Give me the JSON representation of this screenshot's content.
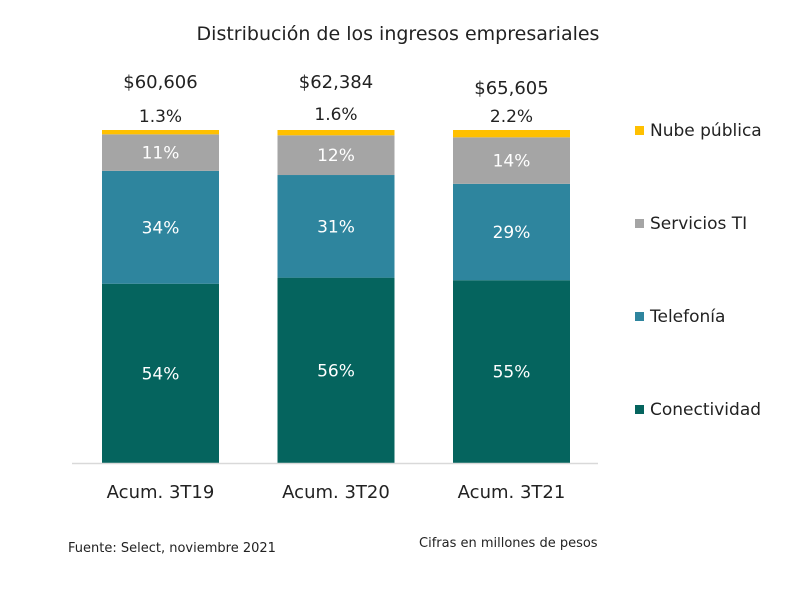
{
  "chart_data": {
    "type": "bar",
    "stacked": true,
    "normalized": true,
    "title": "Distribución de los ingresos empresariales",
    "xlabel": "",
    "ylabel": "",
    "ylim": [
      0,
      100
    ],
    "grid": false,
    "legend_position": "right",
    "categories": [
      "Acum. 3T19",
      "Acum. 3T20",
      "Acum. 3T21"
    ],
    "totals": [
      "$60,606",
      "$62,384",
      "$65,605"
    ],
    "series": [
      {
        "name": "Conectividad",
        "color": "#05645e",
        "values": [
          54,
          56,
          55
        ],
        "labels": [
          "54%",
          "56%",
          "55%"
        ]
      },
      {
        "name": "Telefonía",
        "color": "#2e859e",
        "values": [
          34,
          31,
          29
        ],
        "labels": [
          "34%",
          "31%",
          "29%"
        ]
      },
      {
        "name": "Servicios TI",
        "color": "#a5a5a5",
        "values": [
          11,
          12,
          14
        ],
        "labels": [
          "11%",
          "12%",
          "14%"
        ]
      },
      {
        "name": "Nube pública",
        "color": "#ffc000",
        "values": [
          1.3,
          1.6,
          2.2
        ],
        "labels": [
          "1.3%",
          "1.6%",
          "2.2%"
        ]
      }
    ],
    "legend_order": [
      "Nube pública",
      "Servicios TI",
      "Telefonía",
      "Conectividad"
    ]
  },
  "footer": {
    "source": "Fuente: Select, noviembre 2021",
    "units_note": "Cifras en millones de pesos"
  }
}
